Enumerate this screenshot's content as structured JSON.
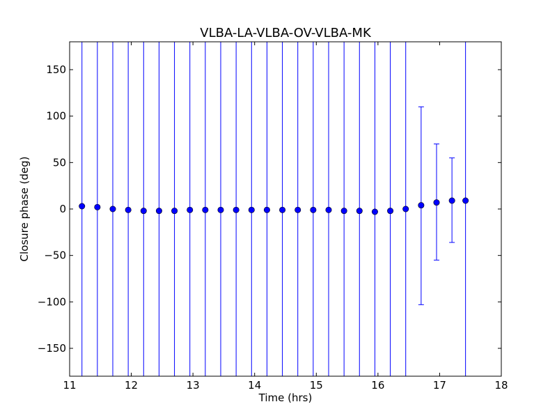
{
  "chart_data": {
    "type": "scatter",
    "title": "VLBA-LA-VLBA-OV-VLBA-MK",
    "xlabel": "Time (hrs)",
    "ylabel": "Closure phase (deg)",
    "xlim": [
      11,
      18
    ],
    "ylim": [
      -180,
      180
    ],
    "xticks": [
      11,
      12,
      13,
      14,
      15,
      16,
      17,
      18
    ],
    "xtick_labels": [
      "11",
      "12",
      "13",
      "14",
      "15",
      "16",
      "17",
      "18"
    ],
    "yticks": [
      -150,
      -100,
      -50,
      0,
      50,
      100,
      150
    ],
    "ytick_labels": [
      "−150",
      "−100",
      "−50",
      "0",
      "50",
      "100",
      "150"
    ],
    "grid": false,
    "colors": {
      "marker": "#0000ff",
      "errorbar": "#0000ff",
      "axes": "#000000",
      "background": "#ffffff"
    },
    "series": [
      {
        "x": [
          11.2,
          11.45,
          11.7,
          11.95,
          12.2,
          12.45,
          12.7,
          12.95,
          13.2,
          13.45,
          13.7,
          13.95,
          14.2,
          14.45,
          14.7,
          14.95,
          15.2,
          15.45,
          15.7,
          15.95,
          16.2,
          16.45,
          16.7,
          16.95,
          17.2,
          17.42
        ],
        "y": [
          3,
          2,
          0,
          -1,
          -2,
          -2,
          -2,
          -1,
          -1,
          -1,
          -1,
          -1,
          -1,
          -1,
          -1,
          -1,
          -1,
          -2,
          -2,
          -3,
          -2,
          0,
          4,
          7,
          9,
          9
        ],
        "yerr_low": [
          -180,
          -180,
          -180,
          -180,
          -180,
          -180,
          -180,
          -180,
          -180,
          -180,
          -180,
          -180,
          -180,
          -180,
          -180,
          -180,
          -180,
          -180,
          -180,
          -180,
          -180,
          -180,
          -103,
          -55,
          -36,
          -180
        ],
        "yerr_high": [
          180,
          180,
          180,
          180,
          180,
          180,
          180,
          180,
          180,
          180,
          180,
          180,
          180,
          180,
          180,
          180,
          180,
          180,
          180,
          180,
          180,
          180,
          110,
          70,
          55,
          180
        ]
      }
    ]
  }
}
